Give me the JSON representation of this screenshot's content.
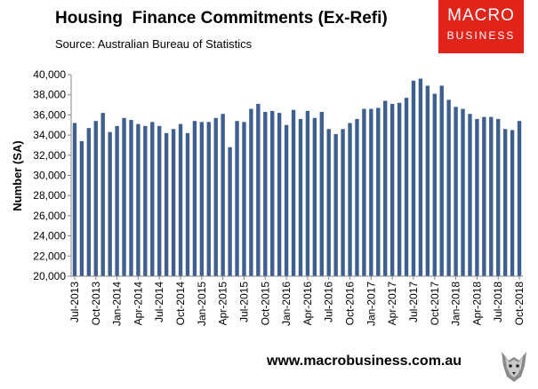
{
  "header": {
    "title": "Housing  Finance Commitments (Ex-Refi)",
    "source": "Source: Australian Bureau of Statistics"
  },
  "logo": {
    "line1": "MACRO",
    "line2": "BUSINESS"
  },
  "footer": {
    "url": "www.macrobusiness.com.au",
    "mascot_icon": "wolf-icon"
  },
  "colors": {
    "bar": "#3f5f8f",
    "logo_bg": "#e2231a"
  },
  "chart_data": {
    "type": "bar",
    "title": "Housing  Finance Commitments (Ex-Refi)",
    "ylabel": "Number (SA)",
    "xlabel": "",
    "ylim": [
      20000,
      40000
    ],
    "yticks": [
      20000,
      22000,
      24000,
      26000,
      28000,
      30000,
      32000,
      34000,
      36000,
      38000,
      40000
    ],
    "ytick_labels": [
      "20,000",
      "22,000",
      "24,000",
      "26,000",
      "28,000",
      "30,000",
      "32,000",
      "34,000",
      "36,000",
      "38,000",
      "40,000"
    ],
    "grid": false,
    "legend": "none",
    "categories": [
      "Jul-2013",
      "Aug-2013",
      "Sep-2013",
      "Oct-2013",
      "Nov-2013",
      "Dec-2013",
      "Jan-2014",
      "Feb-2014",
      "Mar-2014",
      "Apr-2014",
      "May-2014",
      "Jun-2014",
      "Jul-2014",
      "Aug-2014",
      "Sep-2014",
      "Oct-2014",
      "Nov-2014",
      "Dec-2014",
      "Jan-2015",
      "Feb-2015",
      "Mar-2015",
      "Apr-2015",
      "May-2015",
      "Jun-2015",
      "Jul-2015",
      "Aug-2015",
      "Sep-2015",
      "Oct-2015",
      "Nov-2015",
      "Dec-2015",
      "Jan-2016",
      "Feb-2016",
      "Mar-2016",
      "Apr-2016",
      "May-2016",
      "Jun-2016",
      "Jul-2016",
      "Aug-2016",
      "Sep-2016",
      "Oct-2016",
      "Nov-2016",
      "Dec-2016",
      "Jan-2017",
      "Feb-2017",
      "Mar-2017",
      "Apr-2017",
      "May-2017",
      "Jun-2017",
      "Jul-2017",
      "Aug-2017",
      "Sep-2017",
      "Oct-2017",
      "Nov-2017",
      "Dec-2017",
      "Jan-2018",
      "Feb-2018",
      "Mar-2018",
      "Apr-2018",
      "May-2018",
      "Jun-2018",
      "Jul-2018",
      "Aug-2018",
      "Sep-2018",
      "Oct-2018"
    ],
    "tick_labels_shown": [
      "Jul-2013",
      "Oct-2013",
      "Jan-2014",
      "Apr-2014",
      "Jul-2014",
      "Oct-2014",
      "Jan-2015",
      "Apr-2015",
      "Jul-2015",
      "Oct-2015",
      "Jan-2016",
      "Apr-2016",
      "Jul-2016",
      "Oct-2016",
      "Jan-2017",
      "Apr-2017",
      "Jul-2017",
      "Oct-2017",
      "Jan-2018",
      "Apr-2018",
      "Jul-2018",
      "Oct-2018"
    ],
    "series": [
      {
        "values": [
          35200,
          33400,
          34700,
          35400,
          36200,
          34300,
          34900,
          35700,
          35500,
          35100,
          34900,
          35300,
          34900,
          34200,
          34600,
          35100,
          34200,
          35400,
          35300,
          35300,
          35700,
          36100,
          32800,
          35400,
          35300,
          36600,
          37100,
          36300,
          36400,
          36200,
          35000,
          36500,
          35600,
          36400,
          35700,
          36300,
          34600,
          34100,
          34600,
          35200,
          35600,
          36600,
          36600,
          36700,
          37400,
          37100,
          37200,
          37700,
          39400,
          39600,
          38900,
          38100,
          38900,
          37500,
          36800,
          36600,
          36100,
          35600,
          35800,
          35800,
          35600,
          34600,
          34500,
          35400
        ]
      }
    ]
  }
}
